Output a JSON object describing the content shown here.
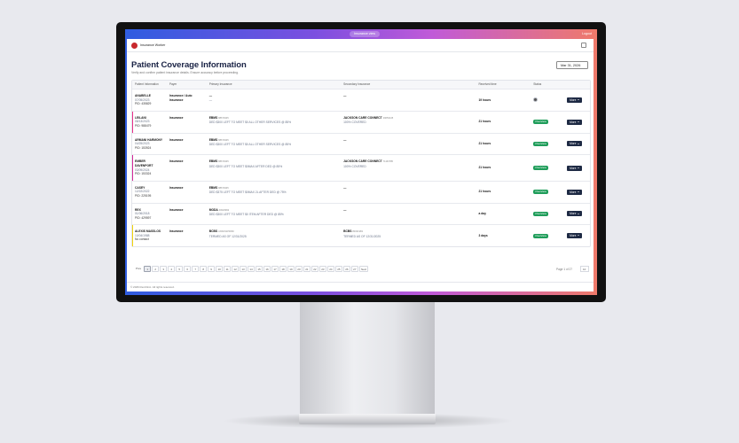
{
  "top_bar": {
    "view_label": "Insurance view",
    "logout": "Logout"
  },
  "header": {
    "user": "Insurance Worker",
    "title": "Patient Coverage Information",
    "subtitle": "Verify and confirm patient insurance details. Ensure accuracy before proceeding.",
    "date": "Mar 31, 2026"
  },
  "table": {
    "columns": [
      "Patient Information",
      "Payer",
      "Primary Insurance",
      "Secondary Insurance",
      "Received time",
      "Status"
    ],
    "rows": [
      {
        "patient": {
          "name": "ANABELLE",
          "dob": "07/05/2023",
          "pid": "PID: 435829"
        },
        "payer": "Insurance / Auto Insurance",
        "primary": {
          "name": "—",
          "detail": "—"
        },
        "secondary": {
          "name": "—"
        },
        "received": "19 hours",
        "action": "More"
      },
      {
        "flag": "#e8308a",
        "patient": {
          "name": "LEILANI",
          "dob": "08/13/2023",
          "pid": "PID: 988479"
        },
        "payer": "Insurance",
        "primary": {
          "name": "EBMS",
          "code": "88670345",
          "detail": "DED $300 LEFT TO MEET $0 ALL OTHER SERVICES @ 85%"
        },
        "secondary": {
          "name": "JACKSON CARE CONNECT",
          "code": "29653145",
          "detail": "100% COVERED"
        },
        "received": "21 hours",
        "status": "Overview",
        "action": "More"
      },
      {
        "patient": {
          "name": "ARMANI HARMONY",
          "dob": "04/25/2023",
          "pid": "PID: 153924"
        },
        "payer": "Insurance",
        "primary": {
          "name": "EBMS",
          "code": "88670345",
          "detail": "DED $300 LEFT TO MEET $0 ALL OTHER SERVICES @ 85%"
        },
        "secondary": {
          "name": "—"
        },
        "received": "21 hours",
        "status": "Overview",
        "action": "More"
      },
      {
        "flag": "#d62a9a",
        "patient": {
          "name": "EMBER DAVENPORT",
          "dob": "03/09/2024",
          "pid": "PID: 153324"
        },
        "payer": "Insurance",
        "primary": {
          "name": "EBMS",
          "code": "88670345",
          "detail": "DED $300 LEFT TO MEET $0MAX AFTER DED @ 85%"
        },
        "secondary": {
          "name": "JACKSON CARE CONNECT",
          "code": "71163785",
          "detail": "100% COVERED"
        },
        "received": "21 hours",
        "status": "Overview",
        "action": "More"
      },
      {
        "patient": {
          "name": "CASEY",
          "dob": "12/22/2022",
          "pid": "PID: 225195"
        },
        "payer": "Insurance",
        "primary": {
          "name": "EBMS",
          "code": "88670345",
          "detail": "DED $375 LEFT TO MEET $0MAX 2L AFTER DED @ 75%"
        },
        "secondary": {
          "name": "—"
        },
        "received": "21 hours",
        "status": "Overview",
        "action": "More"
      },
      {
        "patient": {
          "name": "REX",
          "dob": "01/06/2018",
          "pid": "PID: 429597"
        },
        "payer": "Insurance",
        "primary": {
          "name": "MODA",
          "code": "40026962",
          "detail": "DED $300 LEFT TO MEET $0 ITEM AFTER DED @ 85%"
        },
        "secondary": {
          "name": "—"
        },
        "received": "a day",
        "status": "Overview",
        "action": "More"
      },
      {
        "flag": "#f2d40c",
        "patient": {
          "name": "ALEXIS MASSLOS",
          "dob": "10/04/1988",
          "pid": "No contact"
        },
        "payer": "Insurance",
        "primary": {
          "name": "BCBS",
          "code": "ANSO91P0660",
          "detail": "TERMED AS OF 12/31/2025"
        },
        "secondary": {
          "name": "BCBS",
          "code": "80031983",
          "detail": "TERMED AS OF 12/31/2025"
        },
        "received": "3 days",
        "status": "Overview",
        "action": "More"
      }
    ]
  },
  "pagination": {
    "prev": "Prev",
    "pages": [
      "1",
      "2",
      "3",
      "4",
      "5",
      "6",
      "7",
      "8",
      "9",
      "10",
      "11",
      "12",
      "13",
      "14",
      "15",
      "16",
      "17",
      "18",
      "19",
      "20",
      "21",
      "22",
      "23",
      "24",
      "25",
      "26",
      "27"
    ],
    "next": "Next",
    "summary": "Page 1 of 27",
    "page_size": "10"
  },
  "footer": "© 2026 RevClinic. All rights reserved."
}
